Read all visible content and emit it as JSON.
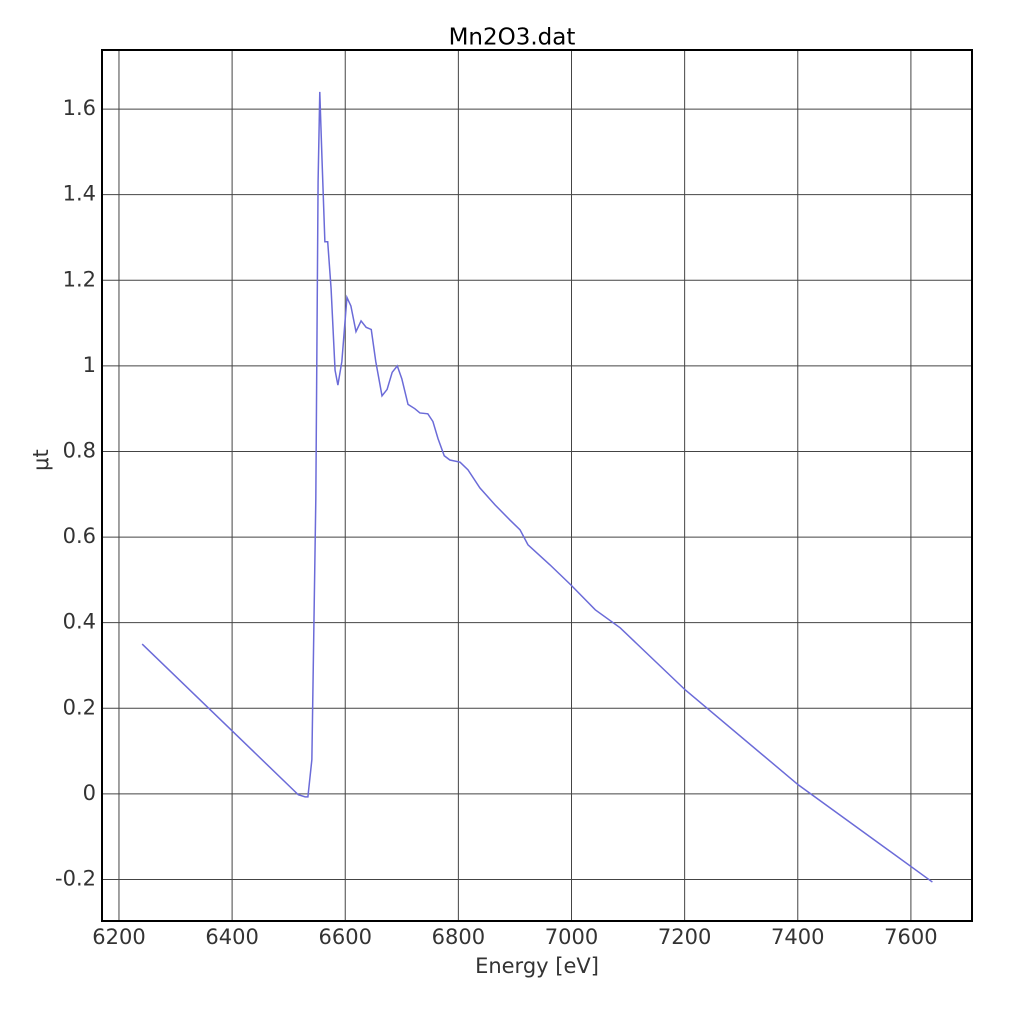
{
  "chart_data": {
    "type": "line",
    "title": "Mn2O3.dat",
    "x_label": "Energy [eV]",
    "y_label": "μt",
    "xlim": [
      6170,
      7708
    ],
    "ylim": [
      -0.297,
      1.738
    ],
    "xticks": [
      6200,
      6400,
      6600,
      6800,
      7000,
      7200,
      7400,
      7600
    ],
    "yticks": [
      -0.2,
      0,
      0.2,
      0.4,
      0.6,
      0.8,
      1,
      1.2,
      1.4,
      1.6
    ],
    "grid": true,
    "series": [
      {
        "name": "Mn2O3.dat",
        "color": "#6b6bd8",
        "x": [
          6241,
          6517,
          6529,
          6534,
          6541,
          6548,
          6552,
          6555,
          6559,
          6564,
          6569,
          6575,
          6582,
          6587,
          6594,
          6603,
          6610,
          6619,
          6628,
          6637,
          6646,
          6654,
          6665,
          6674,
          6683,
          6692,
          6700,
          6711,
          6723,
          6732,
          6746,
          6755,
          6764,
          6775,
          6785,
          6803,
          6817,
          6838,
          6865,
          6891,
          6909,
          6923,
          6962,
          6999,
          7042,
          7086,
          7201,
          7401,
          7638
        ],
        "values": [
          0.35,
          -0.002,
          -0.007,
          -0.007,
          0.08,
          0.69,
          1.43,
          1.64,
          1.48,
          1.29,
          1.29,
          1.18,
          0.99,
          0.955,
          1.01,
          1.16,
          1.14,
          1.08,
          1.105,
          1.09,
          1.085,
          1.01,
          0.93,
          0.945,
          0.985,
          1.0,
          0.97,
          0.91,
          0.9,
          0.89,
          0.888,
          0.87,
          0.83,
          0.79,
          0.78,
          0.775,
          0.757,
          0.715,
          0.675,
          0.64,
          0.617,
          0.582,
          0.535,
          0.488,
          0.43,
          0.388,
          0.243,
          0.021,
          -0.206
        ]
      }
    ]
  }
}
